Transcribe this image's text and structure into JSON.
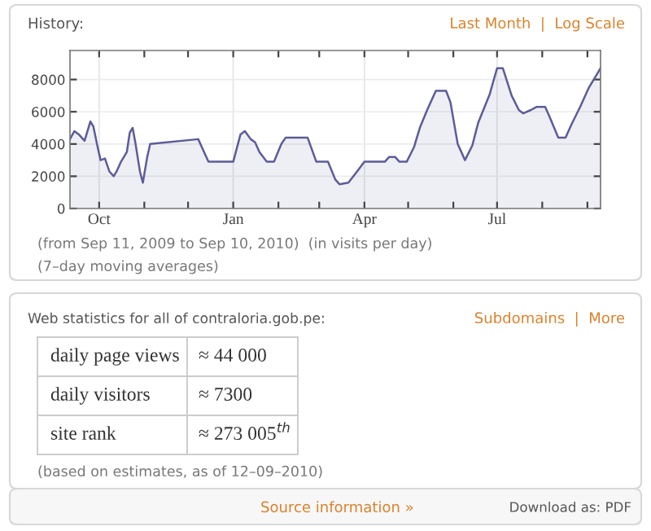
{
  "chart_data": [
    {
      "type": "area",
      "title": "History:",
      "annotations": [
        "Last Month  |  Log Scale",
        "(from Sep 11, 2009 to Sep 10, 2010)  (in visits per day)",
        "(7–day moving averages)"
      ],
      "x": [
        "2009-09-11",
        "2009-09-14",
        "2009-09-17",
        "2009-09-21",
        "2009-09-25",
        "2009-09-27",
        "2009-09-30",
        "2009-10-02",
        "2009-10-05",
        "2009-10-08",
        "2009-10-11",
        "2009-10-13",
        "2009-10-16",
        "2009-10-20",
        "2009-10-22",
        "2009-10-24",
        "2009-10-26",
        "2009-10-29",
        "2009-10-31",
        "2009-11-03",
        "2009-11-05",
        "2009-12-08",
        "2009-12-15",
        "2010-01-01",
        "2010-01-06",
        "2010-01-09",
        "2010-01-13",
        "2010-01-16",
        "2010-01-19",
        "2010-01-24",
        "2010-01-29",
        "2010-02-03",
        "2010-02-06",
        "2010-02-21",
        "2010-02-27",
        "2010-03-07",
        "2010-03-12",
        "2010-03-15",
        "2010-03-21",
        "2010-03-27",
        "2010-04-01",
        "2010-04-15",
        "2010-04-18",
        "2010-04-22",
        "2010-04-25",
        "2010-04-30",
        "2010-05-05",
        "2010-05-09",
        "2010-05-14",
        "2010-05-20",
        "2010-05-27",
        "2010-05-30",
        "2010-06-04",
        "2010-06-09",
        "2010-06-14",
        "2010-06-18",
        "2010-06-26",
        "2010-07-01",
        "2010-07-05",
        "2010-07-11",
        "2010-07-16",
        "2010-07-19",
        "2010-07-24",
        "2010-07-28",
        "2010-08-03",
        "2010-08-06",
        "2010-08-12",
        "2010-08-17",
        "2010-08-21",
        "2010-08-27",
        "2010-09-02",
        "2010-09-10"
      ],
      "series": [
        {
          "color": "#5c5c99",
          "values": [
            4300,
            4800,
            4600,
            4200,
            5400,
            5100,
            3800,
            3000,
            3100,
            2300,
            2000,
            2300,
            2900,
            3500,
            4700,
            5000,
            4000,
            2300,
            1600,
            3200,
            4000,
            4300,
            2900,
            2900,
            4600,
            4800,
            4300,
            4100,
            3500,
            2900,
            2900,
            4000,
            4400,
            4400,
            2900,
            2900,
            1800,
            1500,
            1600,
            2300,
            2900,
            2900,
            3200,
            3200,
            2900,
            2900,
            3800,
            5000,
            6100,
            7300,
            7300,
            6600,
            4000,
            3000,
            3900,
            5300,
            7100,
            8700,
            8700,
            7000,
            6100,
            5900,
            6100,
            6300,
            6300,
            5700,
            4400,
            4400,
            5200,
            6300,
            7500,
            8700
          ]
        }
      ],
      "xlim": [
        "2009-09-11",
        "2010-09-10"
      ],
      "xticks": [
        {
          "value": "2009-10-01",
          "label": "Oct"
        },
        {
          "value": "2009-11-01",
          "label": null
        },
        {
          "value": "2009-12-01",
          "label": null
        },
        {
          "value": "2010-01-01",
          "label": "Jan"
        },
        {
          "value": "2010-02-01",
          "label": null
        },
        {
          "value": "2010-03-01",
          "label": null
        },
        {
          "value": "2010-04-01",
          "label": "Apr"
        },
        {
          "value": "2010-05-01",
          "label": null
        },
        {
          "value": "2010-06-01",
          "label": null
        },
        {
          "value": "2010-07-01",
          "label": "Jul"
        },
        {
          "value": "2010-08-01",
          "label": null
        },
        {
          "value": "2010-09-01",
          "label": null
        }
      ],
      "ylim": [
        0,
        9800
      ],
      "yticks": [
        0,
        2000,
        4000,
        6000,
        8000
      ],
      "grid": true
    },
    {
      "type": "other",
      "title": "Web statistics for all of contraloria.gob.pe:",
      "annotations": [
        "Subdomains  |  More",
        "(based on estimates, as of 12–09–2010)",
        "Source information »",
        "Download as: PDF"
      ],
      "categories": [
        "daily page views",
        "daily visitors",
        "site rank"
      ],
      "value_labels": [
        "≈ 44 000",
        "≈ 7300",
        "≈ 273 005$^{th}$"
      ]
    }
  ]
}
